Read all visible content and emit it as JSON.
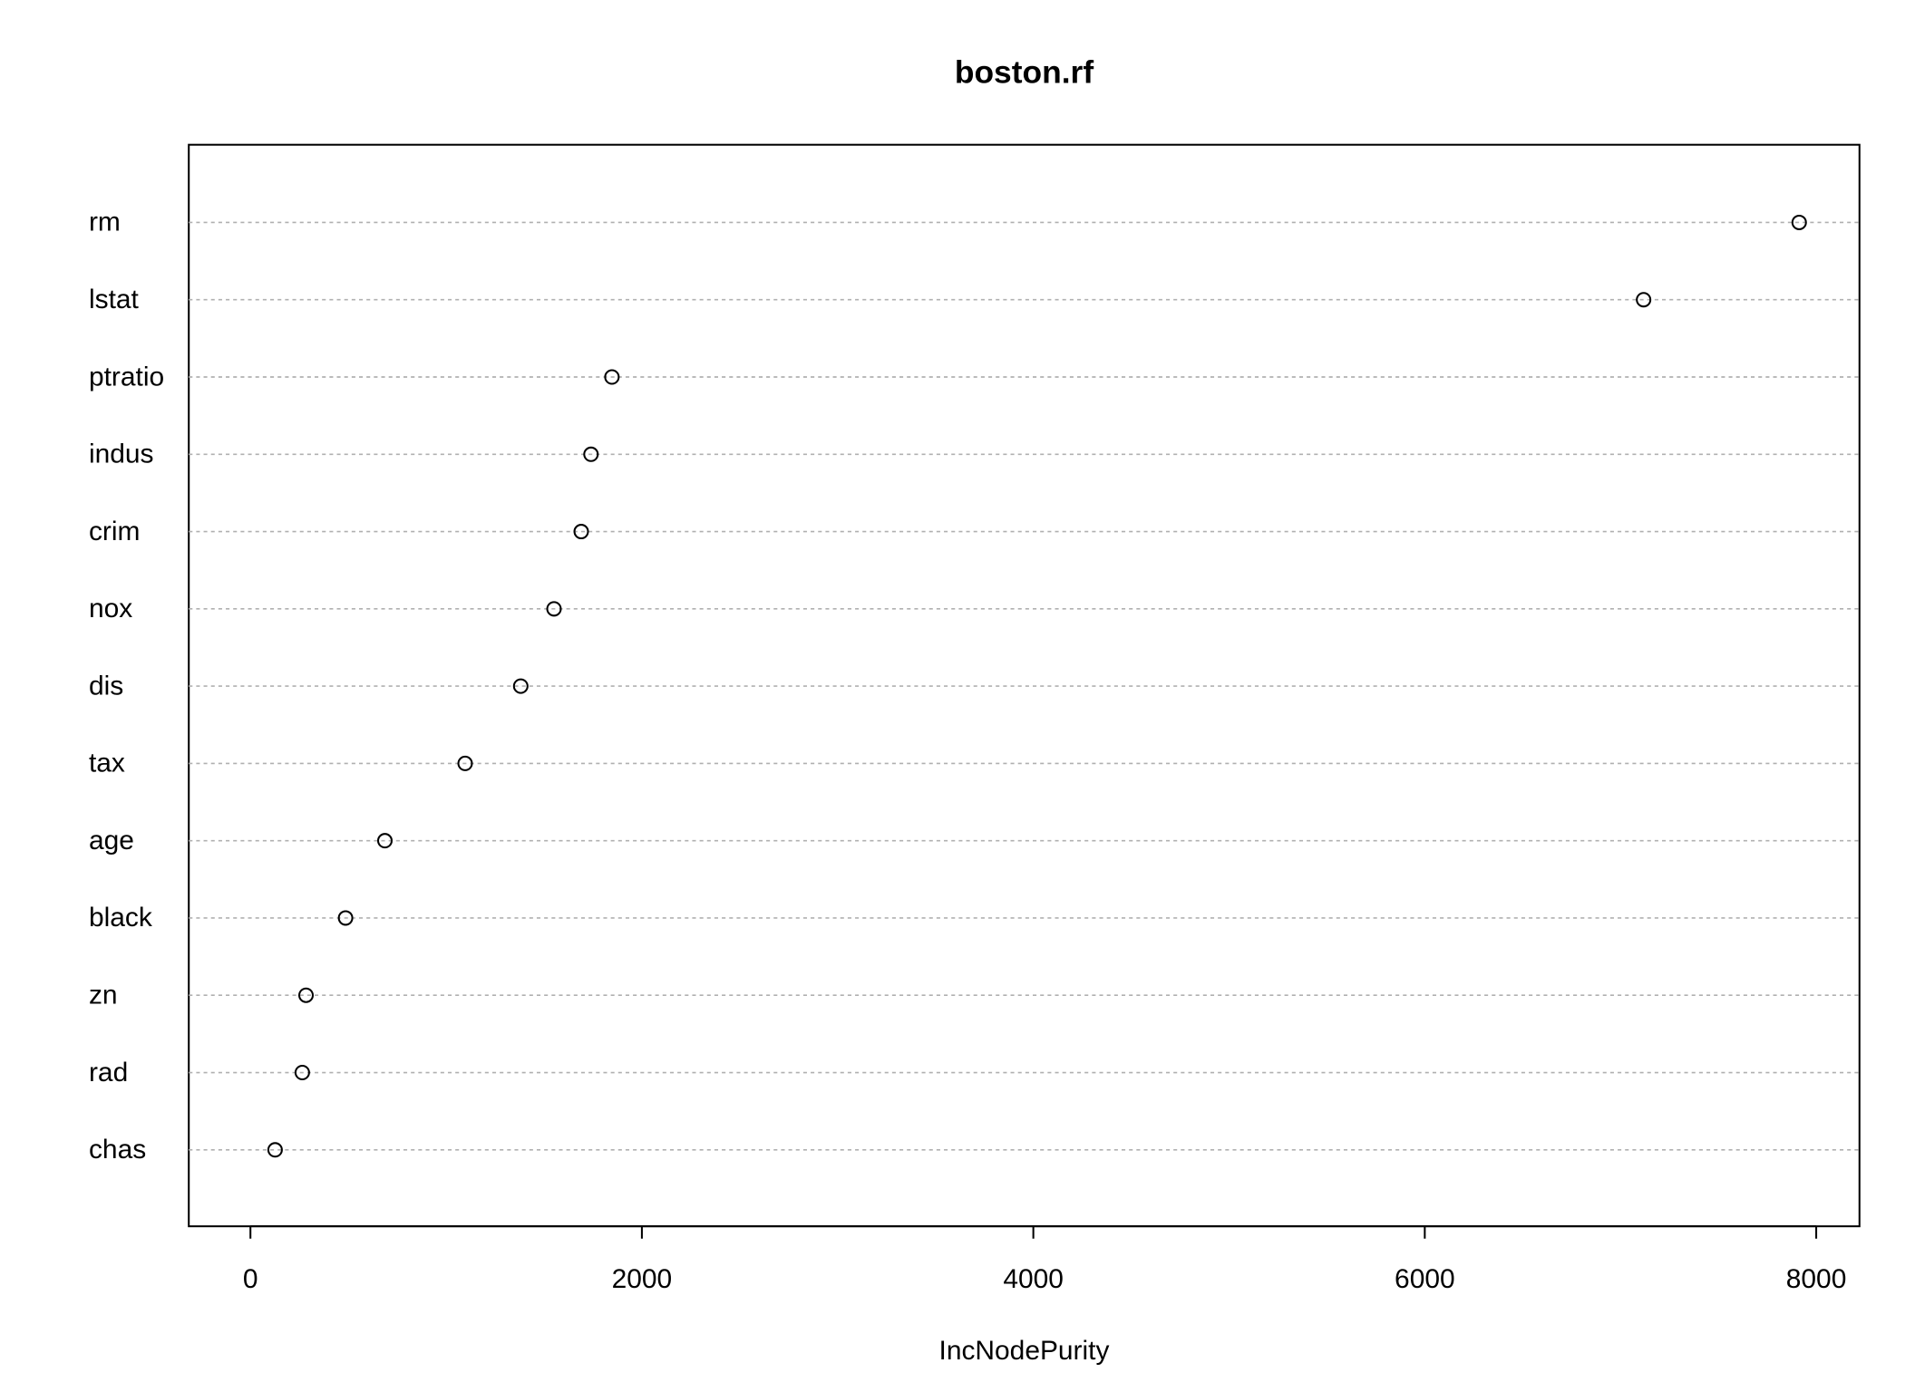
{
  "chart_data": {
    "type": "dotchart",
    "title": "boston.rf",
    "x_label": "IncNodePurity",
    "categories": [
      "rm",
      "lstat",
      "ptratio",
      "indus",
      "crim",
      "nox",
      "dis",
      "tax",
      "age",
      "black",
      "zn",
      "rad",
      "chas"
    ],
    "values": [
      7913,
      7118,
      1847,
      1740,
      1690,
      1551,
      1381,
      1097,
      687,
      486,
      284,
      265,
      126
    ],
    "color": "#000000",
    "grid": true,
    "xlim": [
      -315,
      8221
    ],
    "xticks": [
      0,
      2000,
      4000,
      6000,
      8000
    ]
  }
}
